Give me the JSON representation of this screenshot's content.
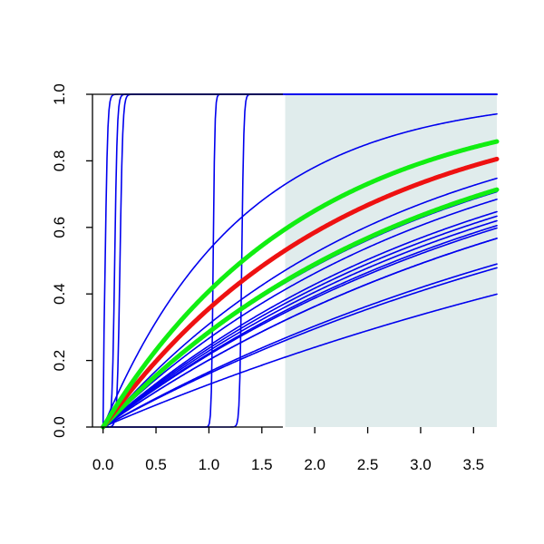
{
  "chart_data": {
    "type": "line",
    "title": "",
    "xlabel": "",
    "ylabel": "",
    "xlim": [
      -0.1,
      3.72
    ],
    "ylim": [
      0,
      1
    ],
    "grid": false,
    "x_ticks": [
      "0.0",
      "0.5",
      "1.0",
      "1.5",
      "2.0",
      "2.5",
      "3.0",
      "3.5"
    ],
    "y_ticks": [
      "0.0",
      "0.2",
      "0.4",
      "0.6",
      "0.8",
      "1.0"
    ],
    "shaded_region": {
      "x_start": 1.72,
      "x_end": 3.72,
      "y_start": 0,
      "y_end": 1,
      "color": "#e0ecec"
    },
    "colors": {
      "thin": "#0000ee",
      "red": "#ee1111",
      "green": "#11ee11",
      "shade": "#e0ecec"
    },
    "series": [
      {
        "kind": "rate",
        "rate": 0.76,
        "color": "thin",
        "width": 1.6
      },
      {
        "kind": "rate",
        "rate": 0.37,
        "color": "thin",
        "width": 1.6
      },
      {
        "kind": "rate",
        "rate": 0.33,
        "color": "thin",
        "width": 1.6
      },
      {
        "kind": "rate",
        "rate": 0.31,
        "color": "thin",
        "width": 1.6
      },
      {
        "kind": "rate",
        "rate": 0.28,
        "color": "thin",
        "width": 1.6
      },
      {
        "kind": "rate",
        "rate": 0.27,
        "color": "thin",
        "width": 1.6
      },
      {
        "kind": "rate",
        "rate": 0.26,
        "color": "thin",
        "width": 1.6
      },
      {
        "kind": "rate",
        "rate": 0.25,
        "color": "thin",
        "width": 1.6
      },
      {
        "kind": "rate",
        "rate": 0.245,
        "color": "thin",
        "width": 1.6
      },
      {
        "kind": "rate",
        "rate": 0.225,
        "color": "thin",
        "width": 1.6
      },
      {
        "kind": "rate",
        "rate": 0.225,
        "color": "thin",
        "width": 1.6
      },
      {
        "kind": "rate",
        "rate": 0.181,
        "color": "thin",
        "width": 1.6
      },
      {
        "kind": "rate",
        "rate": 0.175,
        "color": "thin",
        "width": 1.6
      },
      {
        "kind": "rate",
        "rate": 0.137,
        "color": "thin",
        "width": 1.6
      },
      {
        "kind": "sigmoid",
        "center": 0.02,
        "scale": 0.012,
        "color": "thin",
        "width": 1.6
      },
      {
        "kind": "sigmoid",
        "center": 0.11,
        "scale": 0.012,
        "color": "thin",
        "width": 1.6
      },
      {
        "kind": "sigmoid",
        "center": 0.16,
        "scale": 0.013,
        "color": "thin",
        "width": 1.6
      },
      {
        "kind": "sigmoid",
        "center": 1.04,
        "scale": 0.008,
        "color": "thin",
        "width": 1.6
      },
      {
        "kind": "sigmoid",
        "center": 1.31,
        "scale": 0.01,
        "color": "thin",
        "width": 1.6
      },
      {
        "kind": "rate",
        "rate": 0.336,
        "color": "green",
        "width": 5
      },
      {
        "kind": "rate",
        "rate": 0.44,
        "color": "red",
        "width": 5
      },
      {
        "kind": "rate",
        "rate": 0.525,
        "color": "green",
        "width": 5
      }
    ]
  }
}
